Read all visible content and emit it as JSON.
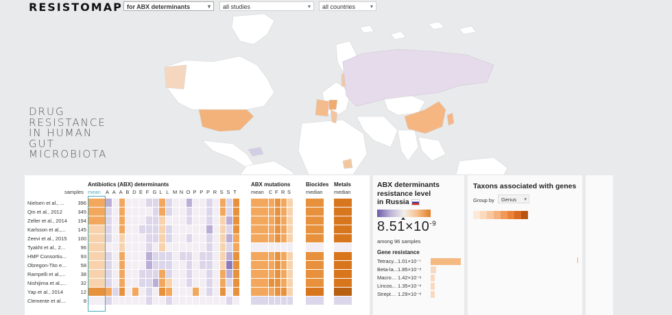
{
  "header": {
    "logo": "RESISTOMAP",
    "selects": [
      {
        "value": "for ABX determinants"
      },
      {
        "value": "all studies"
      },
      {
        "value": "all countries"
      }
    ]
  },
  "tagline": [
    "DRUG",
    "RESISTANCE",
    "IN HUMAN",
    "GUT",
    "MICROBIOTA"
  ],
  "heatmap": {
    "samples_label": "samples",
    "groups": [
      {
        "title": "Antibiotics (ABX) determinants",
        "columns": [
          "mean",
          "A",
          "A",
          "A",
          "B",
          "D",
          "E",
          "F",
          "G",
          "L",
          "L",
          "M",
          "N",
          "O",
          "P",
          "P",
          "P",
          "R",
          "S",
          "S",
          "T"
        ]
      },
      {
        "title": "ABX mutations",
        "columns": [
          "mean",
          "C",
          "F",
          "R",
          "S"
        ]
      },
      {
        "title": "Biocides",
        "columns": [
          "median"
        ]
      },
      {
        "title": "Metals",
        "columns": [
          "median"
        ]
      }
    ],
    "studies": [
      {
        "name": "Nielsen et al., ...",
        "samples": "396"
      },
      {
        "name": "Qin et al., 2012",
        "samples": "345"
      },
      {
        "name": "Zeller et al., 2014",
        "samples": "194"
      },
      {
        "name": "Karlsson et al.,...",
        "samples": "145"
      },
      {
        "name": "Zeevi et al., 2015",
        "samples": "100"
      },
      {
        "name": "Tyakht et al., 2...",
        "samples": "96"
      },
      {
        "name": "HMP Consortiu...",
        "samples": "93"
      },
      {
        "name": "Obregon-Tito e...",
        "samples": "58"
      },
      {
        "name": "Rampelli et al.,...",
        "samples": "38"
      },
      {
        "name": "Nishijima et al.,...",
        "samples": "32"
      },
      {
        "name": "Yap et al., 2014",
        "samples": "12"
      },
      {
        "name": "Clemente et al....",
        "samples": "8"
      }
    ],
    "abx": [
      [
        2,
        -2,
        0,
        2,
        0,
        0,
        0,
        -1,
        -1,
        2,
        -1,
        0,
        0,
        -2,
        0,
        0,
        -1,
        0,
        2,
        -1,
        3
      ],
      [
        2,
        -1,
        0,
        2,
        0,
        0,
        0,
        0,
        -1,
        2,
        -1,
        0,
        0,
        -1,
        0,
        0,
        -1,
        0,
        2,
        -1,
        3
      ],
      [
        2,
        -1,
        0,
        2,
        0,
        0,
        0,
        -1,
        -1,
        1,
        0,
        0,
        0,
        -1,
        0,
        0,
        -1,
        0,
        1,
        -2,
        3
      ],
      [
        1,
        -1,
        0,
        2,
        0,
        0,
        -1,
        -1,
        -1,
        1,
        -1,
        0,
        0,
        0,
        0,
        0,
        -2,
        0,
        1,
        -1,
        3
      ],
      [
        1,
        -1,
        0,
        1,
        0,
        0,
        0,
        -1,
        -1,
        1,
        -1,
        0,
        0,
        -1,
        0,
        0,
        -1,
        0,
        1,
        -2,
        2
      ],
      [
        1,
        0,
        0,
        1,
        0,
        0,
        0,
        -1,
        0,
        1,
        0,
        0,
        0,
        0,
        0,
        0,
        -1,
        0,
        1,
        -1,
        2
      ],
      [
        1,
        -1,
        0,
        2,
        0,
        0,
        0,
        -2,
        -1,
        -1,
        -1,
        0,
        -1,
        -1,
        0,
        -1,
        -1,
        0,
        1,
        -2,
        3
      ],
      [
        1,
        -1,
        0,
        2,
        0,
        0,
        0,
        -2,
        -1,
        -1,
        -1,
        0,
        0,
        -1,
        0,
        -1,
        -1,
        0,
        1,
        -3,
        3
      ],
      [
        1,
        -1,
        0,
        2,
        0,
        0,
        -1,
        -1,
        -1,
        2,
        -1,
        0,
        0,
        -1,
        0,
        0,
        -1,
        0,
        2,
        -2,
        3
      ],
      [
        1,
        -1,
        0,
        2,
        0,
        0,
        -1,
        -1,
        -2,
        2,
        1,
        0,
        0,
        -1,
        0,
        0,
        -1,
        0,
        2,
        -1,
        3
      ],
      [
        3,
        2,
        -1,
        3,
        0,
        2,
        0,
        -1,
        0,
        3,
        2,
        0,
        0,
        0,
        2,
        0,
        -1,
        0,
        3,
        0,
        3
      ],
      [
        0,
        -1,
        0,
        0,
        0,
        0,
        0,
        -1,
        0,
        0,
        -1,
        0,
        0,
        0,
        0,
        0,
        0,
        0,
        0,
        -1,
        0
      ]
    ],
    "mut": [
      [
        2,
        2,
        3,
        2,
        1
      ],
      [
        2,
        2,
        3,
        2,
        1
      ],
      [
        2,
        2,
        3,
        2,
        1
      ],
      [
        2,
        2,
        3,
        2,
        1
      ],
      [
        2,
        2,
        3,
        2,
        1
      ],
      [
        0,
        0,
        0,
        0,
        0
      ],
      [
        2,
        2,
        3,
        2,
        1
      ],
      [
        2,
        2,
        3,
        2,
        1
      ],
      [
        2,
        2,
        3,
        2,
        1
      ],
      [
        2,
        3,
        3,
        2,
        1
      ],
      [
        2,
        2,
        3,
        3,
        1
      ],
      [
        -1,
        -1,
        -1,
        -1,
        -1
      ]
    ],
    "bio": [
      3,
      3,
      3,
      3,
      3,
      0,
      3,
      3,
      3,
      3,
      4,
      -1
    ],
    "met": [
      4,
      4,
      4,
      4,
      4,
      0,
      4,
      4,
      4,
      4,
      5,
      -1
    ]
  },
  "russia": {
    "title_line1": "ABX determinants",
    "title_line2": "resistance level",
    "title_line3": "in Russia",
    "value": "8.51×10",
    "exponent": "-9",
    "among": "among 96 samples",
    "gene_resistance_title": "Gene resistance",
    "genes": [
      {
        "name": "Tetracy...",
        "value": "1.01×10⁻⁷",
        "level": 1.0
      },
      {
        "name": "Beta-la...",
        "value": "1.85×10⁻⁸",
        "level": 0.18
      },
      {
        "name": "Macroli...",
        "value": "1.42×10⁻⁸",
        "level": 0.14
      },
      {
        "name": "Lincos...",
        "value": "1.35×10⁻⁸",
        "level": 0.13
      },
      {
        "name": "Strepto...",
        "value": "1.29×10⁻⁸",
        "level": 0.13
      }
    ]
  },
  "taxons": {
    "title": "Taxons associated with genes",
    "group_by_label": "Group by",
    "group_by_value": "Genus"
  },
  "colors": {
    "orange3": "#e08a30",
    "orange2": "#f2a75c",
    "orange1": "#f8d2ad",
    "purple1": "#dcd6ea",
    "purple2": "#b9aed6",
    "purple3": "#8b7bbd",
    "neutral": "#efeaf0"
  }
}
